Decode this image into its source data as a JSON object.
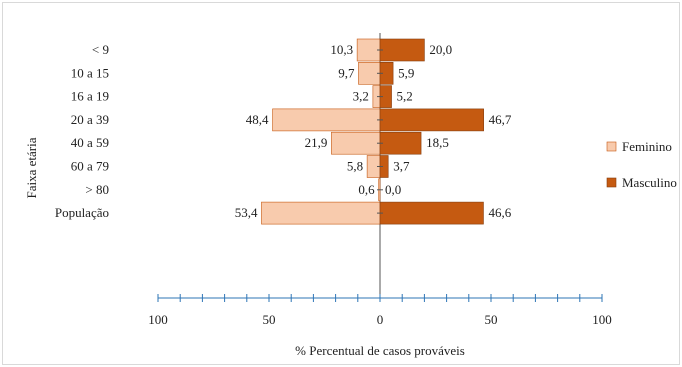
{
  "chart_data": {
    "type": "bar",
    "orientation": "horizontal",
    "layout": "diverging",
    "categories": [
      "< 9",
      "10 a 15",
      "16 a 19",
      "20 a 39",
      "40 a 59",
      "60 a 79",
      "> 80",
      "População"
    ],
    "series": [
      {
        "name": "Feminino",
        "values": [
          10.3,
          9.7,
          3.2,
          48.4,
          21.9,
          5.8,
          0.6,
          53.4
        ],
        "value_labels": [
          "10,3",
          "9,7",
          "3,2",
          "48,4",
          "21,9",
          "5,8",
          "0,6",
          "53,4"
        ],
        "color": "#f8cbad",
        "stroke": "#c65911"
      },
      {
        "name": "Masculino",
        "values": [
          20.0,
          5.9,
          5.2,
          46.7,
          18.5,
          3.7,
          0.0,
          46.6
        ],
        "value_labels": [
          "20,0",
          "5,9",
          "5,2",
          "46,7",
          "18,5",
          "3,7",
          "0,0",
          "46,6"
        ],
        "color": "#c55a11",
        "stroke": "#843c0c"
      }
    ],
    "xlabel": "% Percentual de casos prováveis",
    "ylabel": "Faixa etária",
    "xlim": [
      -100,
      100
    ],
    "xticks": [
      -100,
      -50,
      0,
      50,
      100
    ],
    "xtick_labels": [
      "100",
      "50",
      "0",
      "50",
      "100"
    ],
    "minor_tick_step": 10,
    "grid": false,
    "legend": "right",
    "axis_color": "#2e75b6"
  }
}
